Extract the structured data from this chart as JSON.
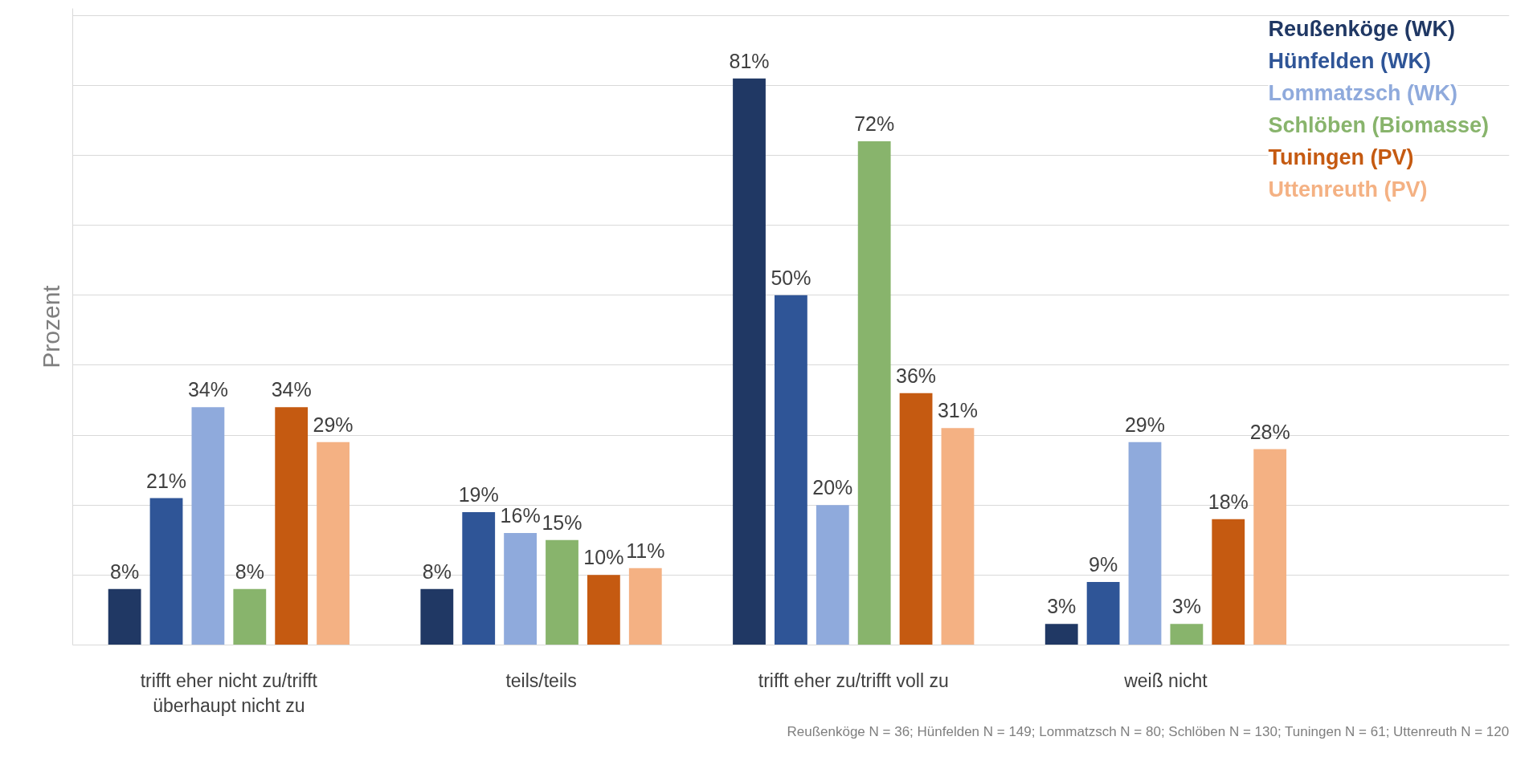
{
  "chart_data": {
    "type": "bar",
    "ylabel": "Prozent",
    "categories": [
      "trifft eher nicht zu/trifft überhaupt nicht zu",
      "teils/teils",
      "trifft eher zu/trifft voll zu",
      "weiß nicht"
    ],
    "series": [
      {
        "name": "Reußenköge (WK)",
        "color": "#203864",
        "values": [
          8,
          8,
          81,
          3
        ],
        "value_labels": [
          "8%",
          "8%",
          "81%",
          "3%"
        ]
      },
      {
        "name": "Hünfelden (WK)",
        "color": "#2f5597",
        "values": [
          21,
          19,
          50,
          9
        ],
        "value_labels": [
          "21%",
          "19%",
          "50%",
          "9%"
        ]
      },
      {
        "name": "Lommatzsch (WK)",
        "color": "#8faadc",
        "values": [
          34,
          16,
          20,
          29
        ],
        "value_labels": [
          "34%",
          "16%",
          "20%",
          "29%"
        ]
      },
      {
        "name": "Schlöben (Biomasse)",
        "color": "#88b46c",
        "values": [
          8,
          15,
          72,
          3
        ],
        "value_labels": [
          "8%",
          "15%",
          "72%",
          "3%"
        ]
      },
      {
        "name": "Tuningen (PV)",
        "color": "#c55a11",
        "values": [
          34,
          10,
          36,
          18
        ],
        "value_labels": [
          "34%",
          "10%",
          "36%",
          "18%"
        ]
      },
      {
        "name": "Uttenreuth (PV)",
        "color": "#f4b183",
        "values": [
          29,
          11,
          31,
          28
        ],
        "value_labels": [
          "29%",
          "11%",
          "31%",
          "28%"
        ]
      }
    ],
    "ylim": [
      0,
      91
    ],
    "yticks": [
      {
        "value": 0,
        "label": null
      },
      {
        "value": 10,
        "label": null
      },
      {
        "value": 20,
        "label": null
      },
      {
        "value": 30,
        "label": null
      },
      {
        "value": 40,
        "label": null
      },
      {
        "value": 50,
        "label": null
      },
      {
        "value": 60,
        "label": null
      },
      {
        "value": 70,
        "label": null
      },
      {
        "value": 80,
        "label": null
      },
      {
        "value": 90,
        "label": null
      }
    ],
    "tick_labels": "x",
    "grid": "y",
    "annotations": [
      "Reußenköge N = 36; Hünfelden N = 149; Lommatzsch N = 80; Schlöben N = 130; Tuningen N = 61; Uttenreuth N = 120"
    ]
  }
}
